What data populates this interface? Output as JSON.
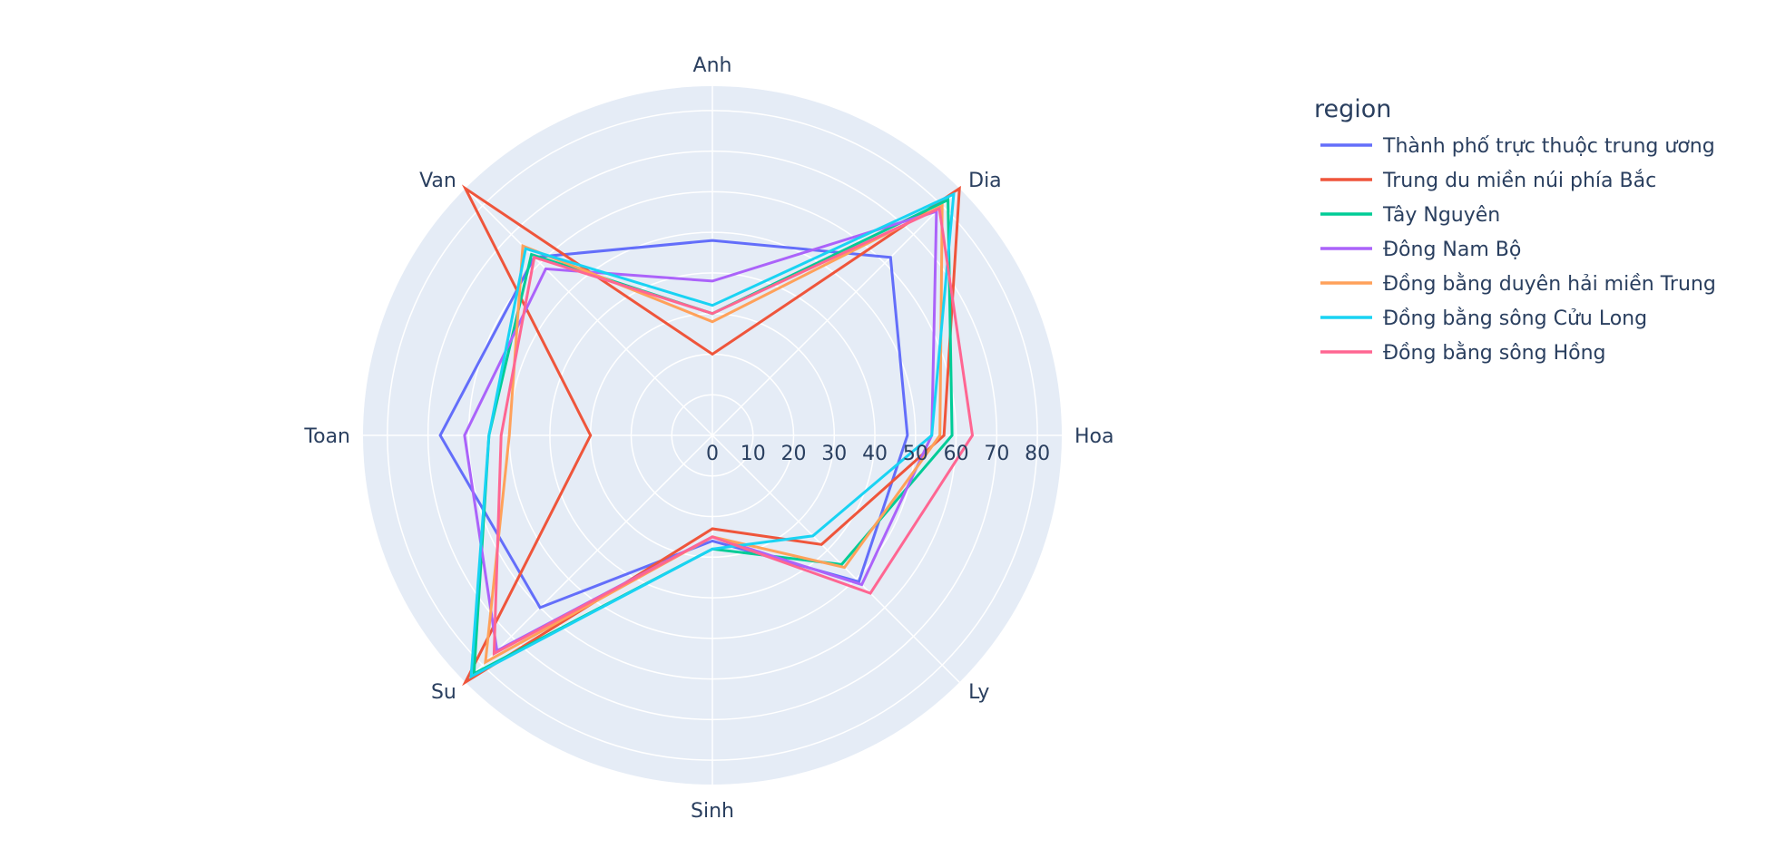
{
  "chart_data": {
    "type": "radar",
    "axes": [
      "Hoa",
      "Dia",
      "Anh",
      "Van",
      "Toan",
      "Su",
      "Sinh",
      "Ly"
    ],
    "radial_ticks": [
      0,
      10,
      20,
      30,
      40,
      50,
      60,
      70,
      80
    ],
    "radial_range": [
      0,
      86
    ],
    "grid": true,
    "legend": {
      "title": "region",
      "placement": "right"
    },
    "series": [
      {
        "name": "Thành phố trực thuộc trung ương",
        "color": "#636efa",
        "values": [
          48,
          62,
          48,
          62,
          67,
          60,
          26,
          51
        ]
      },
      {
        "name": "Trung du miền núi phía Bắc",
        "color": "#ef553b",
        "values": [
          57,
          86,
          20,
          86,
          30,
          86,
          23,
          38
        ]
      },
      {
        "name": "Tây Nguyên",
        "color": "#00cc96",
        "values": [
          59,
          82,
          30,
          63,
          55,
          83,
          28,
          45
        ]
      },
      {
        "name": "Đông Nam Bộ",
        "color": "#ab63fa",
        "values": [
          54,
          78,
          38,
          58,
          61,
          75,
          25,
          52
        ]
      },
      {
        "name": "Đồng bằng duyên hải miền Trung",
        "color": "#FFA15A",
        "values": [
          56,
          80,
          28,
          66,
          50,
          79,
          25,
          46
        ]
      },
      {
        "name": "Đồng bằng sông Cửu Long",
        "color": "#19d3f3",
        "values": [
          54,
          84,
          32,
          65,
          55,
          84,
          28,
          35
        ]
      },
      {
        "name": "Đồng bằng sông Hồng",
        "color": "#FF6692",
        "values": [
          64,
          79,
          30,
          62,
          52,
          76,
          25,
          55
        ]
      }
    ]
  }
}
